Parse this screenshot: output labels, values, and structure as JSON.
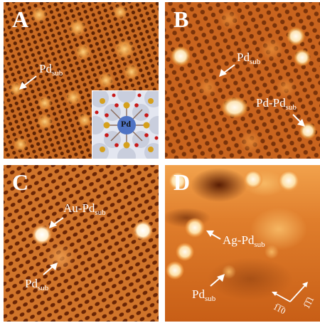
{
  "panels": [
    {
      "letter": "A",
      "labels": [
        {
          "main": "Pd",
          "sub": "sub"
        }
      ],
      "inset_label": "Pd"
    },
    {
      "letter": "B",
      "labels": [
        {
          "main": "Pd",
          "sub": "sub"
        },
        {
          "main": "Pd-Pd",
          "sub": "sub"
        }
      ]
    },
    {
      "letter": "C",
      "labels": [
        {
          "main": "Au-Pd",
          "sub": "sub"
        },
        {
          "main": "Pd",
          "sub": "sub"
        }
      ]
    },
    {
      "letter": "D",
      "labels": [
        {
          "main": "Ag-Pd",
          "sub": "sub"
        },
        {
          "main": "Pd",
          "sub": "sub"
        }
      ],
      "axis_labels": [
        "1̅1̅0",
        "1̅1̅1"
      ]
    }
  ],
  "colors": {
    "stm_dark": "#6b2a06",
    "stm_mid": "#c8621c",
    "stm_bright": "#f6b85c",
    "stm_white": "#fff4d8"
  }
}
